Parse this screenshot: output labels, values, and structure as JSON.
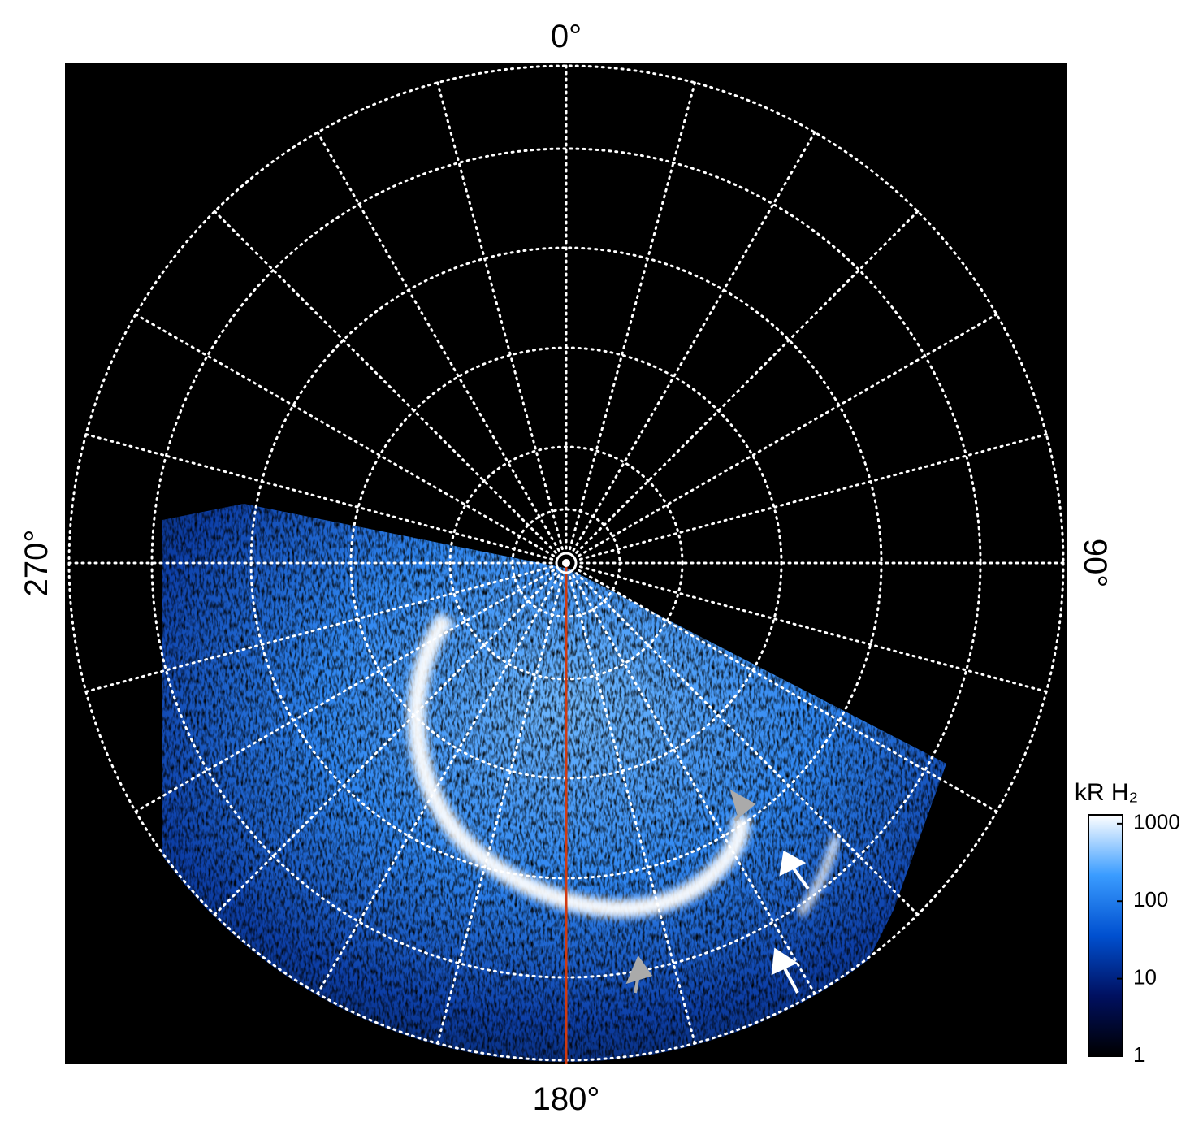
{
  "image": {
    "labels": {
      "top": "0°",
      "right": "90°",
      "bottom": "180°",
      "left": "270°"
    }
  },
  "colorbar": {
    "label": "kR H₂",
    "lim": [
      1,
      1300
    ],
    "ticks": [
      1,
      10,
      100,
      1000
    ],
    "log": true,
    "colors": [
      "#000000",
      "#001060",
      "#0050d0",
      "#3a9cff",
      "#ffffff"
    ]
  }
}
